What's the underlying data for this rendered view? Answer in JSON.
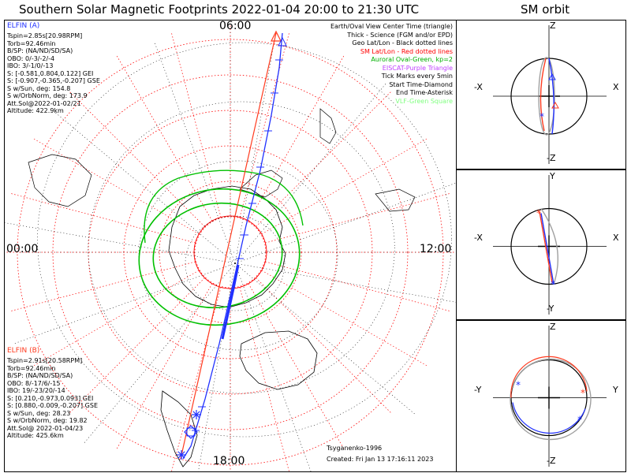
{
  "title": "Southern Solar Magnetic Footprints 2022-01-04 20:00 to 21:30 UTC",
  "side_title": "SM orbit",
  "map": {
    "clock_top": "06:00",
    "clock_left": "00:00",
    "clock_right": "12:00",
    "clock_bottom": "18:00",
    "ela": {
      "name": "ELFIN (A)",
      "color": "#3040ff",
      "lines": [
        "Tspin=2.85s[20.98RPM]",
        "Torb=92.46min",
        "B/SP: (NA/ND/SD/SA)",
        "OBO: 0/-3/-2/-4",
        "IBO: 3/-1/0/-13",
        "S: [-0.581,0.804,0.122] GEI",
        "S: [-0.907,-0.365,-0.207] GSE",
        "S w/Sun, deg: 154.8",
        "S w/OrbNorm, deg: 173.9",
        "Att.Sol@2022-01-02/21",
        "Altitude: 422.9km"
      ]
    },
    "elb": {
      "name": "ELFIN (B)",
      "color": "#ff3b1f",
      "lines": [
        "Tspin=2.91s[20.58RPM]",
        "Torb=92.46min",
        "B/SP: (NA/ND/SD/SA)",
        "OBO: 8/-17/6/-15",
        "IBO: 19/-23/20/-14",
        "S: [0.210,-0.973,0.093] GEI",
        "S: [0.880,-0.009,-0.207] GSE",
        "S w/Sun, deg: 28.23",
        "S w/OrbNorm, deg: 19.82",
        "Att.Sol@ 2022-01-04/23",
        "Altitude: 425.6km"
      ]
    },
    "legend": [
      {
        "text": "Earth/Oval View Center Time (triangle)",
        "color": "#000000"
      },
      {
        "text": "Thick - Science (FGM and/or EPD)",
        "color": "#000000"
      },
      {
        "text": "Geo Lat/Lon - Black dotted lines",
        "color": "#000000"
      },
      {
        "text": "SM Lat/Lon - Red dotted lines",
        "color": "#ff0000"
      },
      {
        "text": "Auroral Oval-Green, kp=2",
        "color": "#00b000"
      },
      {
        "text": "EISCAT-Purple Triangle",
        "color": "#c040ff"
      },
      {
        "text": "Tick Marks every 5min",
        "color": "#000000"
      },
      {
        "text": "Start Time-Diamond",
        "color": "#000000"
      },
      {
        "text": "End Time-Asterisk",
        "color": "#000000"
      },
      {
        "text": "VLF-Green Square",
        "color": "#80ff80"
      }
    ],
    "footer": {
      "model": "Tsyganenko-1996",
      "created": "Created: Fri Jan 13 17:16:11 2023"
    }
  },
  "orbit_panels": [
    {
      "top": "Z",
      "bottom": "-Z",
      "left": "-X",
      "right": "X"
    },
    {
      "top": "Y",
      "bottom": "-Y",
      "left": "-X",
      "right": "X"
    },
    {
      "top": "Z",
      "bottom": "-Z",
      "left": "-Y",
      "right": "Y"
    }
  ],
  "colors": {
    "ela": "#2030ff",
    "elb": "#ff3b1f",
    "sm_grid": "#ff0000",
    "geo_grid": "#000000",
    "oval": "#00c000",
    "orbit_gray": "#a0a0a0"
  }
}
